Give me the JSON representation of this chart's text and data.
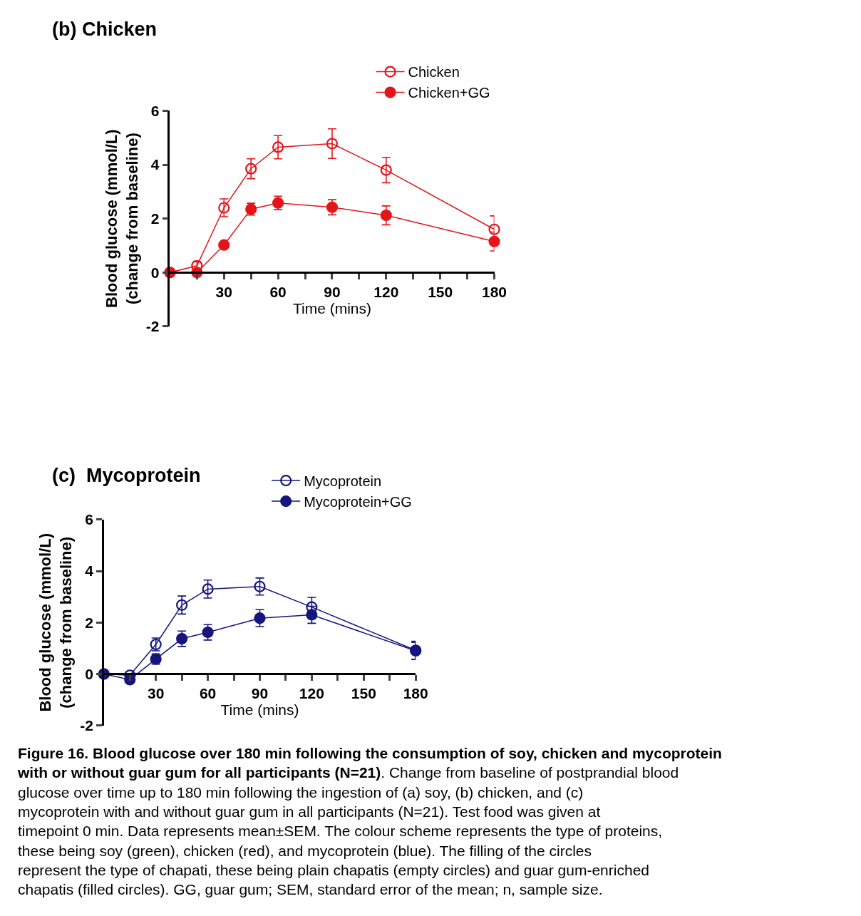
{
  "chart_data": [
    {
      "type": "line",
      "title": "(b) Chicken",
      "xlabel": "Time (mins)",
      "ylabel": "Blood glucose (mmol/L)\n(change from baseline)",
      "x": [
        0,
        15,
        30,
        45,
        60,
        90,
        120,
        180
      ],
      "xlim": [
        0,
        180
      ],
      "xticks": [
        {
          "value": 15,
          "label": null
        },
        30,
        {
          "value": 45,
          "label": null
        },
        60,
        {
          "value": 75,
          "label": null
        },
        90,
        {
          "value": 105,
          "label": null
        },
        120,
        {
          "value": 135,
          "label": null
        },
        150,
        {
          "value": 165,
          "label": null
        },
        180
      ],
      "ylim": [
        -2,
        6
      ],
      "yticks": [
        -2,
        0,
        2,
        4,
        6
      ],
      "marker": "circle",
      "legend": "top right",
      "series": [
        {
          "name": "Chicken",
          "color": "#e3151b",
          "marker": "circle-open",
          "values": [
            0,
            0.25,
            2.4,
            3.85,
            4.65,
            4.78,
            3.8,
            1.6
          ],
          "errors": [
            null,
            0.15,
            0.33,
            0.37,
            0.43,
            0.55,
            0.47,
            0.5
          ]
        },
        {
          "name": "Chicken+GG",
          "color": "#e3151b",
          "values": [
            0,
            0,
            1.02,
            2.35,
            2.58,
            2.42,
            2.12,
            1.15
          ],
          "errors": [
            null,
            null,
            null,
            0.22,
            0.25,
            0.28,
            0.35,
            0.35
          ]
        }
      ]
    },
    {
      "type": "line",
      "title": "(c)  Mycoprotein",
      "xlabel": "Time (mins)",
      "ylabel": "Blood glucose (mmol/L)\n(change from baseline)",
      "x": [
        0,
        15,
        30,
        45,
        60,
        90,
        120,
        180
      ],
      "xlim": [
        0,
        180
      ],
      "xticks": [
        {
          "value": 15,
          "label": null
        },
        30,
        {
          "value": 45,
          "label": null
        },
        60,
        {
          "value": 75,
          "label": null
        },
        90,
        {
          "value": 105,
          "label": null
        },
        120,
        {
          "value": 135,
          "label": null
        },
        150,
        {
          "value": 165,
          "label": null
        },
        180
      ],
      "ylim": [
        -2,
        6
      ],
      "yticks": [
        -2,
        0,
        2,
        4,
        6
      ],
      "marker": "circle",
      "legend": "top right",
      "series": [
        {
          "name": "Mycoprotein",
          "color": "#15157f",
          "marker": "circle-open",
          "values": [
            0,
            -0.05,
            1.15,
            2.68,
            3.3,
            3.4,
            2.6,
            0.92
          ],
          "errors": [
            null,
            null,
            0.25,
            0.35,
            0.35,
            0.33,
            0.38,
            0.35
          ]
        },
        {
          "name": "Mycoprotein+GG",
          "color": "#15157f",
          "values": [
            0,
            -0.22,
            0.58,
            1.37,
            1.62,
            2.17,
            2.3,
            0.9
          ],
          "errors": [
            null,
            null,
            0.2,
            0.3,
            0.3,
            0.33,
            0.33,
            0.33
          ]
        }
      ],
      "annotations": [
        "Figure 16. Blood glucose over 180 min following the consumption of soy, chicken and mycoprotein with or without guar gum for all participants (N=21)",
        ". Change from baseline of postprandial blood glucose over time up to 180 min following the ingestion of (a) soy, (b) chicken, and (c) mycoprotein with and without guar gum in all participants (N=21). Test food was given at timepoint 0 min. Data represents mean±SEM. The colour scheme represents the type of proteins, these being soy (green), chicken (red), and mycoprotein (blue). The filling of the circles represent the type of chapati, these being plain chapatis (empty circles) and guar gum-enriched chapatis (filled circles). GG, guar gum; SEM, standard error of the mean; n, sample size."
      ]
    }
  ]
}
